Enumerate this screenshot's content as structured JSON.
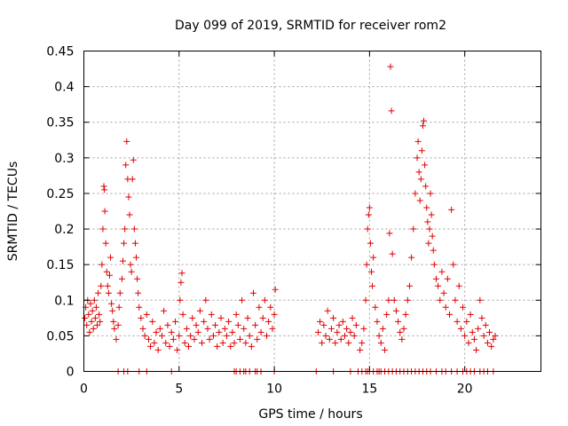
{
  "chart_data": {
    "type": "scatter",
    "title": "Day 099 of 2019, SRMTID for receiver rom2",
    "xlabel": "GPS time / hours",
    "ylabel": "SRMTID / TECUs",
    "xlim": [
      0,
      24
    ],
    "ylim": [
      0,
      0.45
    ],
    "xticks": [
      0,
      5,
      10,
      15,
      20
    ],
    "xtick_labels": [
      "0",
      "5",
      "10",
      "15",
      "20"
    ],
    "yticks": [
      0,
      0.05,
      0.1,
      0.15,
      0.2,
      0.25,
      0.3,
      0.35,
      0.4,
      0.45
    ],
    "ytick_labels": [
      "0",
      "0.05",
      "0.1",
      "0.15",
      "0.2",
      "0.25",
      "0.3",
      "0.35",
      "0.4",
      "0.45"
    ],
    "grid": true,
    "marker": "plus",
    "marker_color": "#e00000",
    "series": [
      {
        "name": "SRMTID",
        "points": [
          [
            0.05,
            0.075
          ],
          [
            0.1,
            0.09
          ],
          [
            0.15,
            0.065
          ],
          [
            0.2,
            0.1
          ],
          [
            0.25,
            0.08
          ],
          [
            0.3,
            0.055
          ],
          [
            0.35,
            0.095
          ],
          [
            0.4,
            0.07
          ],
          [
            0.45,
            0.085
          ],
          [
            0.5,
            0.06
          ],
          [
            0.55,
            0.1
          ],
          [
            0.6,
            0.075
          ],
          [
            0.65,
            0.09
          ],
          [
            0.7,
            0.065
          ],
          [
            0.75,
            0.11
          ],
          [
            0.8,
            0.08
          ],
          [
            0.85,
            0.07
          ],
          [
            0.9,
            0.12
          ],
          [
            0.95,
            0.15
          ],
          [
            1.0,
            0.2
          ],
          [
            1.05,
            0.26
          ],
          [
            1.08,
            0.255
          ],
          [
            1.1,
            0.225
          ],
          [
            1.15,
            0.18
          ],
          [
            1.2,
            0.14
          ],
          [
            1.25,
            0.12
          ],
          [
            1.3,
            0.11
          ],
          [
            1.35,
            0.135
          ],
          [
            1.4,
            0.16
          ],
          [
            1.45,
            0.095
          ],
          [
            1.5,
            0.085
          ],
          [
            1.55,
            0.07
          ],
          [
            1.6,
            0.06
          ],
          [
            1.7,
            0.045
          ],
          [
            1.8,
            0.065
          ],
          [
            1.85,
            0.09
          ],
          [
            1.9,
            0.11
          ],
          [
            2.0,
            0.13
          ],
          [
            2.05,
            0.155
          ],
          [
            2.1,
            0.18
          ],
          [
            2.15,
            0.2
          ],
          [
            2.2,
            0.29
          ],
          [
            2.25,
            0.323
          ],
          [
            2.3,
            0.27
          ],
          [
            2.35,
            0.245
          ],
          [
            2.4,
            0.22
          ],
          [
            2.45,
            0.15
          ],
          [
            2.5,
            0.14
          ],
          [
            2.55,
            0.27
          ],
          [
            2.6,
            0.297
          ],
          [
            2.65,
            0.2
          ],
          [
            2.7,
            0.18
          ],
          [
            2.75,
            0.16
          ],
          [
            2.8,
            0.13
          ],
          [
            2.85,
            0.11
          ],
          [
            2.9,
            0.09
          ],
          [
            3.0,
            0.075
          ],
          [
            3.1,
            0.06
          ],
          [
            3.2,
            0.05
          ],
          [
            3.3,
            0.08
          ],
          [
            3.4,
            0.045
          ],
          [
            3.5,
            0.035
          ],
          [
            3.6,
            0.07
          ],
          [
            3.7,
            0.04
          ],
          [
            3.8,
            0.055
          ],
          [
            3.9,
            0.03
          ],
          [
            4.0,
            0.06
          ],
          [
            4.1,
            0.05
          ],
          [
            4.2,
            0.085
          ],
          [
            4.3,
            0.04
          ],
          [
            4.4,
            0.065
          ],
          [
            4.5,
            0.035
          ],
          [
            4.6,
            0.055
          ],
          [
            4.7,
            0.045
          ],
          [
            4.8,
            0.07
          ],
          [
            4.9,
            0.03
          ],
          [
            5.0,
            0.05
          ],
          [
            5.05,
            0.1
          ],
          [
            5.1,
            0.125
          ],
          [
            5.15,
            0.138
          ],
          [
            5.2,
            0.08
          ],
          [
            5.3,
            0.04
          ],
          [
            5.4,
            0.06
          ],
          [
            5.5,
            0.035
          ],
          [
            5.6,
            0.05
          ],
          [
            5.7,
            0.075
          ],
          [
            5.8,
            0.045
          ],
          [
            5.9,
            0.065
          ],
          [
            6.0,
            0.055
          ],
          [
            6.1,
            0.085
          ],
          [
            6.2,
            0.04
          ],
          [
            6.3,
            0.07
          ],
          [
            6.4,
            0.1
          ],
          [
            6.5,
            0.06
          ],
          [
            6.6,
            0.045
          ],
          [
            6.7,
            0.08
          ],
          [
            6.8,
            0.05
          ],
          [
            6.9,
            0.065
          ],
          [
            7.0,
            0.035
          ],
          [
            7.1,
            0.055
          ],
          [
            7.2,
            0.075
          ],
          [
            7.3,
            0.04
          ],
          [
            7.4,
            0.06
          ],
          [
            7.5,
            0.05
          ],
          [
            7.6,
            0.07
          ],
          [
            7.7,
            0.035
          ],
          [
            7.8,
            0.055
          ],
          [
            7.9,
            0.04
          ],
          [
            8.0,
            0.08
          ],
          [
            8.1,
            0.065
          ],
          [
            8.2,
            0.045
          ],
          [
            8.3,
            0.1
          ],
          [
            8.4,
            0.06
          ],
          [
            8.5,
            0.04
          ],
          [
            8.6,
            0.075
          ],
          [
            8.7,
            0.05
          ],
          [
            8.8,
            0.035
          ],
          [
            8.9,
            0.11
          ],
          [
            9.0,
            0.065
          ],
          [
            9.1,
            0.045
          ],
          [
            9.2,
            0.09
          ],
          [
            9.3,
            0.055
          ],
          [
            9.4,
            0.075
          ],
          [
            9.5,
            0.1
          ],
          [
            9.6,
            0.05
          ],
          [
            9.7,
            0.07
          ],
          [
            9.8,
            0.09
          ],
          [
            9.9,
            0.06
          ],
          [
            10.0,
            0.08
          ],
          [
            10.05,
            0.115
          ],
          [
            12.3,
            0.055
          ],
          [
            12.4,
            0.07
          ],
          [
            12.5,
            0.04
          ],
          [
            12.6,
            0.065
          ],
          [
            12.7,
            0.05
          ],
          [
            12.8,
            0.085
          ],
          [
            12.9,
            0.045
          ],
          [
            13.0,
            0.06
          ],
          [
            13.1,
            0.075
          ],
          [
            13.2,
            0.04
          ],
          [
            13.3,
            0.055
          ],
          [
            13.4,
            0.065
          ],
          [
            13.5,
            0.045
          ],
          [
            13.6,
            0.07
          ],
          [
            13.7,
            0.05
          ],
          [
            13.8,
            0.06
          ],
          [
            13.9,
            0.04
          ],
          [
            14.0,
            0.055
          ],
          [
            14.1,
            0.075
          ],
          [
            14.2,
            0.05
          ],
          [
            14.3,
            0.065
          ],
          [
            14.5,
            0.03
          ],
          [
            14.6,
            0.04
          ],
          [
            14.7,
            0.06
          ],
          [
            14.8,
            0.1
          ],
          [
            14.85,
            0.15
          ],
          [
            14.9,
            0.2
          ],
          [
            14.95,
            0.22
          ],
          [
            15.0,
            0.23
          ],
          [
            15.05,
            0.18
          ],
          [
            15.1,
            0.14
          ],
          [
            15.15,
            0.12
          ],
          [
            15.2,
            0.16
          ],
          [
            15.3,
            0.09
          ],
          [
            15.4,
            0.07
          ],
          [
            15.5,
            0.05
          ],
          [
            15.6,
            0.04
          ],
          [
            15.7,
            0.06
          ],
          [
            15.8,
            0.03
          ],
          [
            15.9,
            0.08
          ],
          [
            16.0,
            0.1
          ],
          [
            16.05,
            0.194
          ],
          [
            16.1,
            0.428
          ],
          [
            16.15,
            0.366
          ],
          [
            16.2,
            0.165
          ],
          [
            16.3,
            0.1
          ],
          [
            16.4,
            0.085
          ],
          [
            16.5,
            0.07
          ],
          [
            16.6,
            0.055
          ],
          [
            16.7,
            0.045
          ],
          [
            16.8,
            0.06
          ],
          [
            16.9,
            0.08
          ],
          [
            17.0,
            0.1
          ],
          [
            17.1,
            0.12
          ],
          [
            17.2,
            0.16
          ],
          [
            17.3,
            0.2
          ],
          [
            17.4,
            0.25
          ],
          [
            17.5,
            0.3
          ],
          [
            17.55,
            0.323
          ],
          [
            17.6,
            0.28
          ],
          [
            17.65,
            0.24
          ],
          [
            17.7,
            0.27
          ],
          [
            17.75,
            0.31
          ],
          [
            17.8,
            0.345
          ],
          [
            17.85,
            0.352
          ],
          [
            17.9,
            0.29
          ],
          [
            17.95,
            0.26
          ],
          [
            18.0,
            0.23
          ],
          [
            18.05,
            0.21
          ],
          [
            18.1,
            0.18
          ],
          [
            18.15,
            0.2
          ],
          [
            18.2,
            0.25
          ],
          [
            18.25,
            0.22
          ],
          [
            18.3,
            0.19
          ],
          [
            18.35,
            0.17
          ],
          [
            18.4,
            0.15
          ],
          [
            18.5,
            0.13
          ],
          [
            18.6,
            0.12
          ],
          [
            18.7,
            0.1
          ],
          [
            18.8,
            0.14
          ],
          [
            18.9,
            0.11
          ],
          [
            19.0,
            0.09
          ],
          [
            19.1,
            0.13
          ],
          [
            19.2,
            0.08
          ],
          [
            19.3,
            0.227
          ],
          [
            19.4,
            0.15
          ],
          [
            19.5,
            0.1
          ],
          [
            19.6,
            0.07
          ],
          [
            19.7,
            0.12
          ],
          [
            19.8,
            0.06
          ],
          [
            19.9,
            0.09
          ],
          [
            20.0,
            0.05
          ],
          [
            20.1,
            0.07
          ],
          [
            20.2,
            0.04
          ],
          [
            20.3,
            0.08
          ],
          [
            20.4,
            0.055
          ],
          [
            20.5,
            0.045
          ],
          [
            20.6,
            0.03
          ],
          [
            20.7,
            0.06
          ],
          [
            20.8,
            0.1
          ],
          [
            20.9,
            0.075
          ],
          [
            21.0,
            0.05
          ],
          [
            21.1,
            0.065
          ],
          [
            21.2,
            0.04
          ],
          [
            21.3,
            0.055
          ],
          [
            21.4,
            0.035
          ],
          [
            21.5,
            0.045
          ],
          [
            21.6,
            0.05
          ]
        ],
        "zero_points": [
          1.8,
          2.1,
          2.3,
          2.9,
          3.3,
          4.6,
          7.9,
          8.0,
          8.2,
          8.4,
          8.5,
          8.7,
          9.0,
          9.1,
          9.3,
          10.0,
          12.2,
          13.1,
          14.0,
          14.4,
          14.6,
          14.8,
          14.9,
          15.0,
          15.2,
          15.4,
          15.5,
          15.6,
          15.8,
          16.0,
          16.2,
          16.4,
          16.6,
          16.8,
          17.0,
          17.2,
          17.4,
          17.6,
          17.8,
          18.0,
          18.2,
          18.5,
          18.8,
          19.0,
          19.3,
          19.6,
          19.9,
          20.1,
          20.3,
          20.5,
          20.8,
          21.0,
          21.2,
          21.5
        ]
      }
    ]
  }
}
